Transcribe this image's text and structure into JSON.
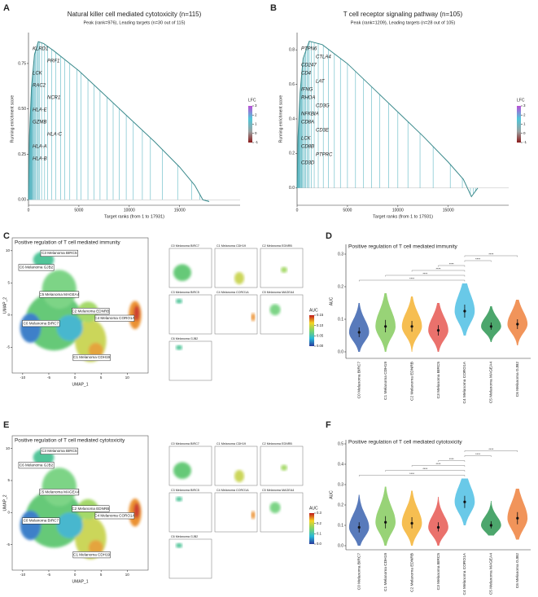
{
  "chart_data": [
    {
      "type": "gsea",
      "label": "A",
      "title": "Natural killer cell mediated cytotoxicity (n=115)",
      "subtitle": "Peak (rank=976), Leading targets (n=30 out of 115)",
      "x_label": "Target ranks (from 1 to 17931)",
      "y_label": "Running enrichment score",
      "x": [
        0,
        100,
        300,
        600,
        976,
        1500,
        2500,
        5000,
        7500,
        10000,
        12500,
        15000,
        16500,
        17300,
        17931
      ],
      "y": [
        0,
        0.35,
        0.62,
        0.8,
        0.87,
        0.86,
        0.82,
        0.71,
        0.58,
        0.45,
        0.32,
        0.18,
        0.08,
        0.0,
        -0.01
      ],
      "hits": [
        10,
        30,
        60,
        90,
        120,
        150,
        180,
        220,
        260,
        300,
        350,
        400,
        450,
        520,
        600,
        700,
        800,
        900,
        976,
        1100,
        1300,
        1600,
        1900,
        2300,
        2700,
        3200,
        3600,
        4100,
        4800,
        5200,
        5900,
        6500,
        7100,
        7800,
        8400,
        9000,
        9700,
        10400,
        11300,
        12100,
        13300,
        14800,
        16200,
        17000,
        17300,
        17600,
        17800
      ],
      "hit_color": "#5fb8c4",
      "curve_color": "#3b8a8c",
      "gene_labels": [
        "KLRD1",
        "PRF1",
        "LCK",
        "RAC2",
        "NCR1",
        "HLA-E",
        "GZMB",
        "HLA-C",
        "HLA-A",
        "HLA-B"
      ],
      "legend_title": "LFC",
      "legend_ticks": [
        3,
        2,
        1,
        0,
        -1
      ],
      "xlim": [
        0,
        21000
      ],
      "xticks": [
        0,
        5000,
        10000,
        15000
      ],
      "ylim": [
        -0.03,
        0.92
      ],
      "yticks": [
        {
          "value": 0,
          "label": "0.00"
        },
        0.25,
        {
          "value": 0.5,
          "label": "0.50"
        },
        0.75
      ]
    },
    {
      "type": "gsea",
      "label": "B",
      "title": "T cell receptor signaling pathway (n=105)",
      "subtitle": "Peak (rank=1209), Leading targets (n=28 out of 105)",
      "x_label": "Target ranks (from 1 to 17931)",
      "y_label": "Running enrichment score",
      "x": [
        0,
        100,
        300,
        600,
        1209,
        2500,
        5000,
        7500,
        10000,
        12500,
        15000,
        16500,
        17300,
        17931
      ],
      "y": [
        0,
        0.3,
        0.55,
        0.75,
        0.85,
        0.83,
        0.72,
        0.58,
        0.44,
        0.3,
        0.15,
        0.05,
        -0.05,
        0
      ],
      "hits": [
        15,
        40,
        70,
        100,
        140,
        170,
        210,
        250,
        300,
        360,
        420,
        480,
        560,
        650,
        750,
        860,
        980,
        1100,
        1209,
        1400,
        1700,
        2100,
        2600,
        3100,
        3700,
        4300,
        5000,
        5800,
        6600,
        7400,
        8200,
        9100,
        10000,
        11000,
        12200,
        13500,
        15200,
        16400,
        16900,
        17200,
        17500,
        17700
      ],
      "hit_color": "#5fb8c4",
      "curve_color": "#3b8a8c",
      "gene_labels": [
        "PTPN6",
        "CTLA4",
        "CD247",
        "CD4",
        "LAT",
        "IFNG",
        "RHOA",
        "CD3G",
        "NFKBIA",
        "CD8A",
        "CD3E",
        "LCK",
        "CD8B",
        "PTPRC",
        "CD3D"
      ],
      "legend_title": "LFC",
      "legend_ticks": [
        3,
        2,
        1,
        0,
        -1
      ],
      "xlim": [
        0,
        21000
      ],
      "xticks": [
        0,
        5000,
        10000,
        15000
      ],
      "ylim": [
        -0.1,
        0.9
      ],
      "yticks": [
        {
          "value": 0,
          "label": "0.0"
        },
        0.2,
        0.4,
        0.6,
        0.8
      ]
    },
    {
      "type": "umap",
      "label": "C",
      "title": "Positive regulation of T cell mediated immunity",
      "x_label": "UMAP_1",
      "y_label": "UMAP_2",
      "clusters": [
        "C0 Melanoma BIRC7",
        "C1 Melanoma CDH19",
        "C2 Melanoma EDNRB",
        "C3 Melanoma BIRC5",
        "C4 Melanoma CORO1A",
        "C5 Melanoma MAGEA4",
        "C6 Melanoma GJB2"
      ],
      "colorbar_title": "AUC",
      "colorbar_ticks": [
        0.15,
        {
          "value": 0.1,
          "label": "0.10"
        },
        0.05,
        {
          "value": 0,
          "label": "0.00"
        }
      ],
      "xlim": [
        -12,
        14
      ],
      "xticks": [
        -10,
        -5,
        0,
        5,
        10
      ],
      "ylim": [
        -9,
        12
      ],
      "yticks": [
        -5,
        0,
        5,
        10
      ]
    },
    {
      "type": "violin",
      "label": "D",
      "title": "Positive regulation of T cell mediated immunity",
      "y_label": "AUC",
      "categories": [
        "C0 Melanoma BIRC7",
        "C1 Melanoma CDH19",
        "C2 Melanoma EDNRB",
        "C3 Melanoma BIRC5",
        "C4 Melanoma CORO1A",
        "C5 Melanoma MAGEA4",
        "C6 Melanoma GJB2"
      ],
      "colors": [
        "#4a6fb5",
        "#8fcf6b",
        "#f5b942",
        "#e8655f",
        "#5cc4e6",
        "#3d9e5f",
        "#f08b4c"
      ],
      "medians": [
        0.06,
        0.078,
        0.078,
        0.066,
        0.125,
        0.078,
        0.085
      ],
      "q1": [
        0.045,
        0.06,
        0.062,
        0.05,
        0.105,
        0.068,
        0.07
      ],
      "q3": [
        0.075,
        0.098,
        0.095,
        0.082,
        0.145,
        0.09,
        0.1
      ],
      "mins": [
        0,
        0,
        0,
        0,
        0.05,
        0.03,
        0.02
      ],
      "maxs": [
        0.15,
        0.18,
        0.17,
        0.15,
        0.21,
        0.14,
        0.16
      ],
      "comparisons": [
        {
          "groups": [
            "C0 Melanoma BIRC7",
            "C4 Melanoma CORO1A"
          ],
          "label": "****"
        },
        {
          "groups": [
            "C1 Melanoma CDH19",
            "C4 Melanoma CORO1A"
          ],
          "label": "****"
        },
        {
          "groups": [
            "C2 Melanoma EDNRB",
            "C4 Melanoma CORO1A"
          ],
          "label": "****"
        },
        {
          "groups": [
            "C3 Melanoma BIRC5",
            "C4 Melanoma CORO1A"
          ],
          "label": "****"
        },
        {
          "groups": [
            "C4 Melanoma CORO1A",
            "C5 Melanoma MAGEA4"
          ],
          "label": "****"
        },
        {
          "groups": [
            "C4 Melanoma CORO1A",
            "C6 Melanoma GJB2"
          ],
          "label": "****"
        }
      ],
      "ylim": [
        -0.02,
        0.33
      ],
      "yticks": [
        {
          "value": 0,
          "label": "0.0"
        },
        0.1,
        0.2,
        0.3
      ]
    },
    {
      "type": "umap",
      "label": "E",
      "title": "Positive regulation of T cell mediated cytotoxicity",
      "x_label": "UMAP_1",
      "y_label": "UMAP_2",
      "clusters": [
        "C0 Melanoma BIRC7",
        "C1 Melanoma CDH19",
        "C2 Melanoma EDNRB",
        "C3 Melanoma BIRC5",
        "C4 Melanoma CORO1A",
        "C5 Melanoma MAGEA4",
        "C6 Melanoma GJB2"
      ],
      "colorbar_title": "AUC",
      "colorbar_ticks": [
        0.3,
        0.2,
        0.1,
        {
          "value": 0,
          "label": "0.0"
        }
      ],
      "xlim": [
        -12,
        14
      ],
      "xticks": [
        -10,
        -5,
        0,
        5,
        10
      ],
      "ylim": [
        -9,
        12
      ],
      "yticks": [
        -5,
        0,
        5,
        10
      ]
    },
    {
      "type": "violin",
      "label": "F",
      "title": "Positive regulation of T cell mediated cytotoxicity",
      "y_label": "AUC",
      "categories": [
        "C0 Melanoma BIRC7",
        "C1 Melanoma CDH19",
        "C2 Melanoma EDNRB",
        "C3 Melanoma BIRC5",
        "C4 Melanoma CORO1A",
        "C5 Melanoma MAGEA4",
        "C6 Melanoma GJB2"
      ],
      "colors": [
        "#4a6fb5",
        "#8fcf6b",
        "#f5b942",
        "#e8655f",
        "#5cc4e6",
        "#3d9e5f",
        "#f08b4c"
      ],
      "medians": [
        0.09,
        0.115,
        0.11,
        0.09,
        0.215,
        0.1,
        0.135
      ],
      "q1": [
        0.065,
        0.085,
        0.085,
        0.07,
        0.185,
        0.085,
        0.105
      ],
      "q3": [
        0.115,
        0.145,
        0.14,
        0.115,
        0.245,
        0.12,
        0.165
      ],
      "mins": [
        0,
        0,
        0,
        0,
        0.1,
        0.05,
        0.03
      ],
      "maxs": [
        0.25,
        0.29,
        0.27,
        0.24,
        0.33,
        0.22,
        0.28
      ],
      "comparisons": [
        {
          "groups": [
            "C0 Melanoma BIRC7",
            "C4 Melanoma CORO1A"
          ],
          "label": "****"
        },
        {
          "groups": [
            "C1 Melanoma CDH19",
            "C4 Melanoma CORO1A"
          ],
          "label": "****"
        },
        {
          "groups": [
            "C2 Melanoma EDNRB",
            "C4 Melanoma CORO1A"
          ],
          "label": "****"
        },
        {
          "groups": [
            "C3 Melanoma BIRC5",
            "C4 Melanoma CORO1A"
          ],
          "label": "****"
        },
        {
          "groups": [
            "C4 Melanoma CORO1A",
            "C5 Melanoma MAGEA4"
          ],
          "label": "****"
        },
        {
          "groups": [
            "C4 Melanoma CORO1A",
            "C6 Melanoma GJB2"
          ],
          "label": "****"
        }
      ],
      "ylim": [
        -0.02,
        0.52
      ],
      "yticks": [
        {
          "value": 0,
          "label": "0.0"
        },
        0.1,
        0.2,
        0.3,
        0.4,
        0.5
      ]
    }
  ]
}
